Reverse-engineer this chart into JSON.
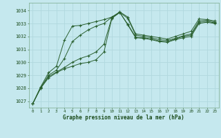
{
  "xlabel": "Graphe pression niveau de la mer (hPa)",
  "background_color": "#c5e8ee",
  "grid_color": "#b0d8de",
  "line_color": "#2a6030",
  "text_color": "#1a4a1a",
  "xlim": [
    -0.5,
    23.5
  ],
  "ylim": [
    1026.5,
    1034.6
  ],
  "yticks": [
    1027,
    1028,
    1029,
    1030,
    1031,
    1032,
    1033,
    1034
  ],
  "xticks": [
    0,
    1,
    2,
    3,
    4,
    5,
    6,
    7,
    8,
    9,
    10,
    11,
    12,
    13,
    14,
    15,
    16,
    17,
    18,
    19,
    20,
    21,
    22,
    23
  ],
  "series": [
    [
      1026.8,
      1028.0,
      1028.8,
      1029.2,
      1029.5,
      1029.7,
      1029.9,
      1030.0,
      1030.2,
      1030.8,
      1033.4,
      1033.85,
      1032.9,
      1031.9,
      1031.85,
      1031.75,
      1031.6,
      1031.55,
      1031.75,
      1031.9,
      1032.0,
      1033.0,
      1033.1,
      1033.0
    ],
    [
      1026.8,
      1028.0,
      1028.9,
      1029.25,
      1029.6,
      1030.0,
      1030.3,
      1030.5,
      1030.8,
      1031.4,
      1033.45,
      1033.85,
      1032.95,
      1031.95,
      1031.9,
      1031.8,
      1031.65,
      1031.6,
      1031.8,
      1032.0,
      1032.1,
      1033.1,
      1033.15,
      1033.05
    ],
    [
      1026.8,
      1028.05,
      1029.0,
      1029.4,
      1030.3,
      1031.6,
      1032.1,
      1032.5,
      1032.8,
      1033.0,
      1033.5,
      1033.85,
      1033.4,
      1032.1,
      1032.0,
      1031.9,
      1031.75,
      1031.7,
      1031.85,
      1032.05,
      1032.2,
      1033.2,
      1033.25,
      1033.1
    ],
    [
      1026.8,
      1028.1,
      1029.2,
      1029.7,
      1031.7,
      1032.8,
      1032.85,
      1033.0,
      1033.15,
      1033.3,
      1033.5,
      1033.9,
      1033.5,
      1032.2,
      1032.1,
      1032.0,
      1031.9,
      1031.8,
      1032.0,
      1032.2,
      1032.4,
      1033.35,
      1033.3,
      1033.2
    ]
  ]
}
